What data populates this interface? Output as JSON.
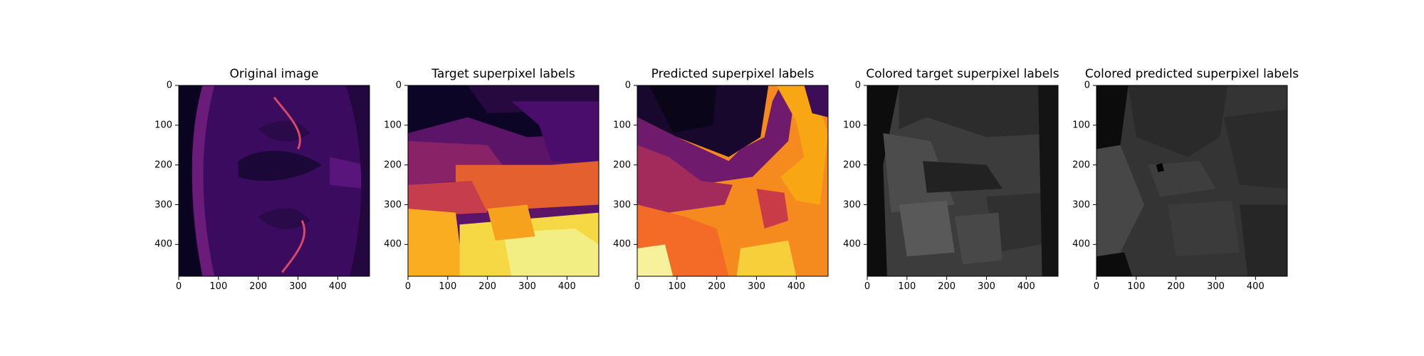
{
  "figure": {
    "panels": [
      {
        "id": "original",
        "title": "Original image",
        "type": "image",
        "colormap": "inferno"
      },
      {
        "id": "target",
        "title": "Target superpixel labels",
        "type": "label-map",
        "colormap": "inferno"
      },
      {
        "id": "predicted",
        "title": "Predicted superpixel labels",
        "type": "label-map",
        "colormap": "inferno"
      },
      {
        "id": "colored-target",
        "title": "Colored target superpixel labels",
        "type": "label-map",
        "colormap": "gray"
      },
      {
        "id": "colored-predicted",
        "title": "Colored predicted superpixel labels",
        "type": "label-map",
        "colormap": "gray"
      }
    ],
    "x_ticks": [
      "0",
      "100",
      "200",
      "300",
      "400"
    ],
    "y_ticks": [
      "0",
      "100",
      "200",
      "300",
      "400"
    ],
    "axis_range": [
      0,
      480
    ]
  }
}
